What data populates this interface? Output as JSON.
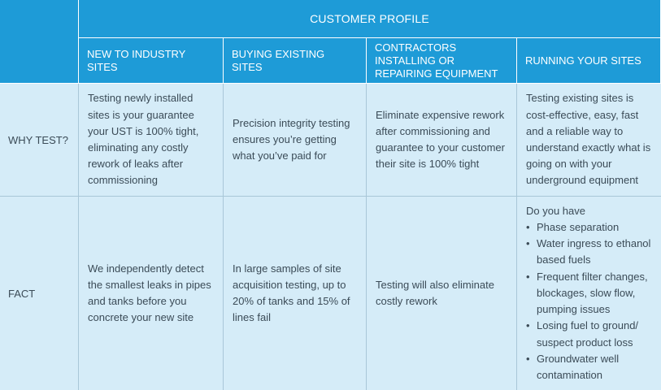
{
  "table": {
    "profile_header": "CUSTOMER PROFILE",
    "columns": [
      "NEW TO INDUSTRY SITES",
      "BUYING EXISTING SITES",
      "CONTRACTORS INSTALLING OR REPAIRING EQUIPMENT",
      "RUNNING YOUR SITES"
    ],
    "rows": [
      {
        "label": "WHY TEST?",
        "cells": [
          "Testing newly installed sites is your guarantee your UST is 100% tight, eliminating any costly rework of leaks after commissioning",
          "Precision integrity testing ensures you’re getting what you’ve paid for",
          "Eliminate expensive rework after commissioning and guarantee to your customer their site is 100% tight",
          "Testing existing sites is cost-effective, easy, fast and a reliable way to understand exactly what is going on with your underground equipment"
        ]
      },
      {
        "label": "FACT",
        "cells": [
          "We independently detect the smallest leaks in pipes and tanks before you concrete your new site",
          "In large samples of site acquisition testing, up to 20% of tanks and 15% of lines fail",
          "Testing will also eliminate costly rework"
        ],
        "running_intro": "Do you have",
        "running_bullets": [
          "Phase separation",
          "Water ingress to ethanol based fuels",
          "Frequent filter changes, blockages, slow flow, pumping issues",
          "Losing fuel to ground/ suspect product loss",
          "Groundwater well contamination"
        ]
      }
    ]
  },
  "colors": {
    "header_blue": "#1e9bd7",
    "body_light_blue": "#d5ecf8",
    "text": "#3b4b57"
  }
}
